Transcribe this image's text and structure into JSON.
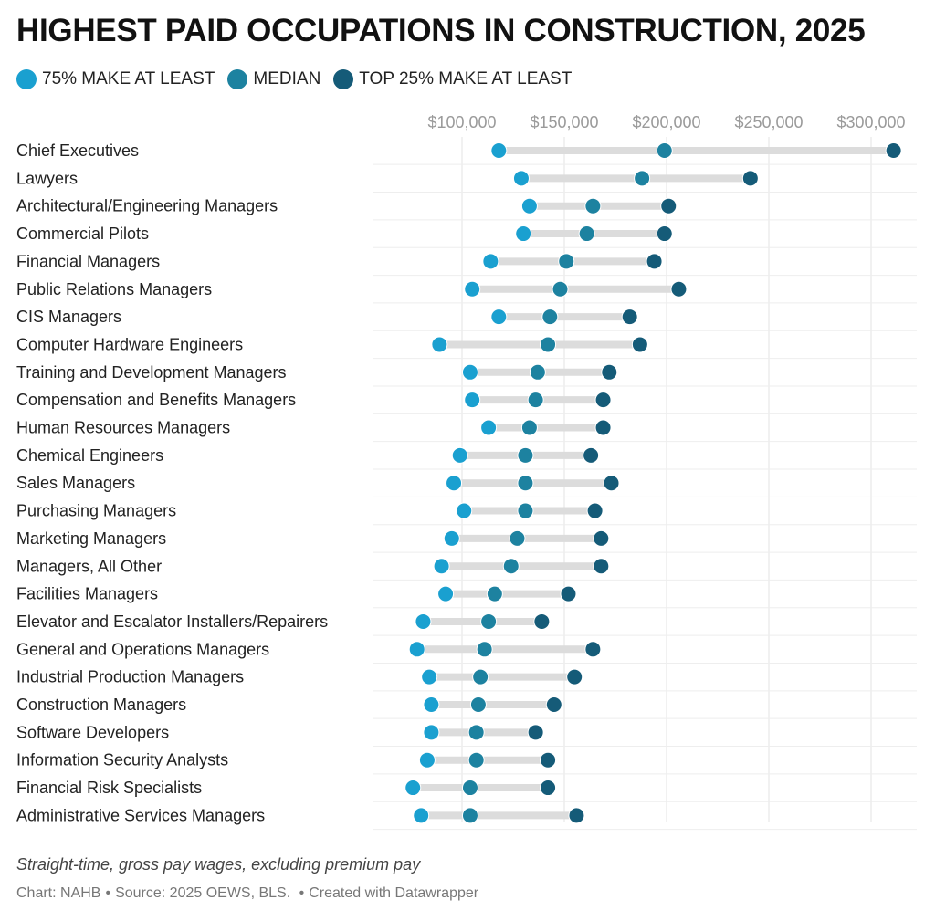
{
  "title": "HIGHEST PAID OCCUPATIONS IN CONSTRUCTION, 2025",
  "legend": [
    {
      "label": "75% MAKE AT LEAST",
      "color": "#1aa0d0"
    },
    {
      "label": "MEDIAN",
      "color": "#1d82a0"
    },
    {
      "label": "TOP 25% MAKE AT LEAST",
      "color": "#155b78"
    }
  ],
  "footer": {
    "note": "Straight-time, gross pay wages, excluding premium pay",
    "chart_by": "Chart: NAHB",
    "source": "Source: 2025 OEWS, BLS.",
    "created_with": "Created with Datawrapper"
  },
  "colors": {
    "low": "#1aa0d0",
    "median": "#1d82a0",
    "high": "#155b78",
    "range_bar": "#dcdcdc",
    "grid": "#e3e3e3",
    "tick_label": "#9a9a9a"
  },
  "chart_data": {
    "type": "range-dot",
    "title": "HIGHEST PAID OCCUPATIONS IN CONSTRUCTION, 2025",
    "xlim": [
      55000,
      310000
    ],
    "x_ticks": [
      100000,
      150000,
      200000,
      250000,
      300000
    ],
    "x_tick_labels": [
      "$100,000",
      "$150,000",
      "$200,000",
      "$250,000",
      "$300,000"
    ],
    "grid": true,
    "legend_position": "top-left",
    "series_names": [
      "75% MAKE AT LEAST",
      "MEDIAN",
      "TOP 25% MAKE AT LEAST"
    ],
    "categories": [
      "Chief Executives",
      "Lawyers",
      "Architectural/Engineering Managers",
      "Commercial Pilots",
      "Financial Managers",
      "Public Relations Managers",
      "CIS Managers",
      "Computer Hardware Engineers",
      "Training and Development Managers",
      "Compensation and Benefits Managers",
      "Human Resources Managers",
      "Chemical Engineers",
      "Sales Managers",
      "Purchasing Managers",
      "Marketing Managers",
      "Managers, All Other",
      "Facilities Managers",
      "Elevator and Escalator Installers/Repairers",
      "General and Operations Managers",
      "Industrial Production Managers",
      "Construction Managers",
      "Software Developers",
      "Information Security Analysts",
      "Financial Risk Specialists",
      "Administrative Services Managers"
    ],
    "low": [
      118000,
      129000,
      133000,
      130000,
      114000,
      105000,
      118000,
      89000,
      104000,
      105000,
      113000,
      99000,
      96000,
      101000,
      95000,
      90000,
      92000,
      81000,
      78000,
      84000,
      85000,
      85000,
      83000,
      76000,
      80000
    ],
    "median": [
      199000,
      188000,
      164000,
      161000,
      151000,
      148000,
      143000,
      142000,
      137000,
      136000,
      133000,
      131000,
      131000,
      131000,
      127000,
      124000,
      116000,
      113000,
      111000,
      109000,
      108000,
      107000,
      107000,
      104000,
      104000
    ],
    "high": [
      311000,
      241000,
      201000,
      199000,
      194000,
      206000,
      182000,
      187000,
      172000,
      169000,
      169000,
      163000,
      173000,
      165000,
      168000,
      168000,
      152000,
      139000,
      164000,
      155000,
      145000,
      136000,
      142000,
      142000,
      156000
    ]
  }
}
